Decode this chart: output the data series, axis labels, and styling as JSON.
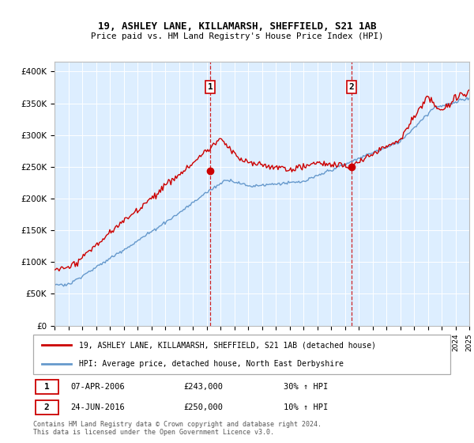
{
  "title1": "19, ASHLEY LANE, KILLAMARSH, SHEFFIELD, S21 1AB",
  "title2": "Price paid vs. HM Land Registry's House Price Index (HPI)",
  "ylabel_ticks": [
    "£0",
    "£50K",
    "£100K",
    "£150K",
    "£200K",
    "£250K",
    "£300K",
    "£350K",
    "£400K"
  ],
  "ylabel_values": [
    0,
    50000,
    100000,
    150000,
    200000,
    250000,
    300000,
    350000,
    400000
  ],
  "ylim": [
    0,
    415000
  ],
  "sale1_date": "07-APR-2006",
  "sale1_price": 243000,
  "sale1_hpi": "30% ↑ HPI",
  "sale1_x": 2006.27,
  "sale2_date": "24-JUN-2016",
  "sale2_price": 250000,
  "sale2_hpi": "10% ↑ HPI",
  "sale2_x": 2016.48,
  "legend_line1": "19, ASHLEY LANE, KILLAMARSH, SHEFFIELD, S21 1AB (detached house)",
  "legend_line2": "HPI: Average price, detached house, North East Derbyshire",
  "footer": "Contains HM Land Registry data © Crown copyright and database right 2024.\nThis data is licensed under the Open Government Licence v3.0.",
  "hpi_color": "#6699cc",
  "price_color": "#cc0000",
  "bg_color": "#ddeeff",
  "xmin": 1995,
  "xmax": 2025
}
